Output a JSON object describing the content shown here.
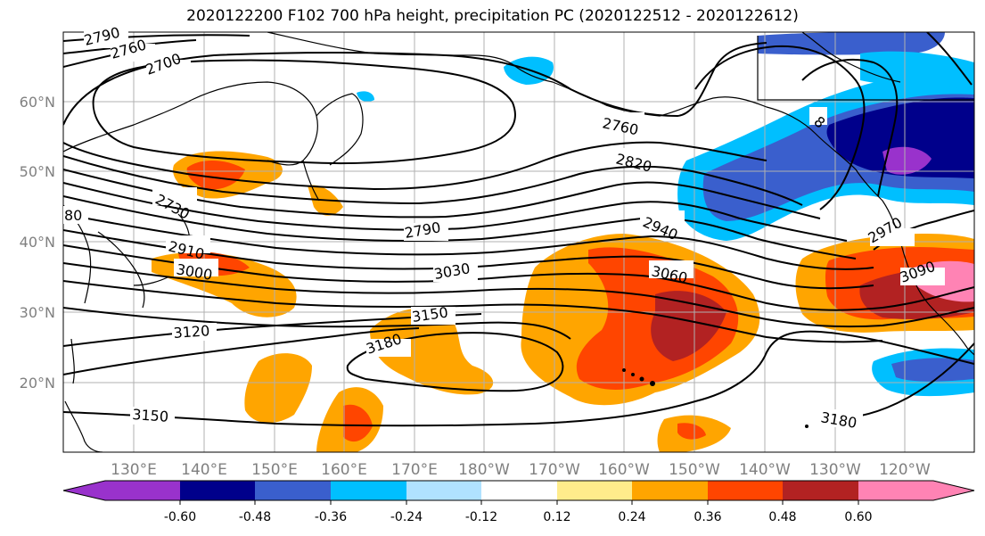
{
  "title": "2020122200 F102 700 hPa height, precipitation PC (2020122512 - 2020122612)",
  "lat_labels": [
    "60°N",
    "50°N",
    "40°N",
    "30°N",
    "20°N"
  ],
  "lon_labels": [
    "130°E",
    "140°E",
    "150°E",
    "160°E",
    "170°E",
    "180°W",
    "170°W",
    "160°W",
    "150°W",
    "140°W",
    "130°W",
    "120°W"
  ],
  "contour_labels": [
    "2790",
    "2760",
    "2700",
    "2760",
    "2820",
    "2940",
    "2790",
    "2730",
    "2910",
    "3000",
    "3030",
    "3060",
    "3150",
    "3120",
    "3180",
    "3090",
    "2970",
    "3150",
    "3180",
    "80",
    "8"
  ],
  "colorbar": {
    "colors": [
      "#9932cc",
      "#00008b",
      "#3a5fcd",
      "#00bfff",
      "#b0e2ff",
      "#ffffff",
      "#ffec8b",
      "#ffa500",
      "#ff4500",
      "#b22222",
      "#ff83b4"
    ],
    "tick_labels": [
      "-0.60",
      "-0.48",
      "-0.36",
      "-0.24",
      "-0.12",
      "0.12",
      "0.24",
      "0.36",
      "0.48",
      "0.60"
    ]
  },
  "field_colors": {
    "map_background": "#ffffff",
    "gridline": "#b0b0b0",
    "contour": "#000000",
    "coastline": "#000000"
  }
}
